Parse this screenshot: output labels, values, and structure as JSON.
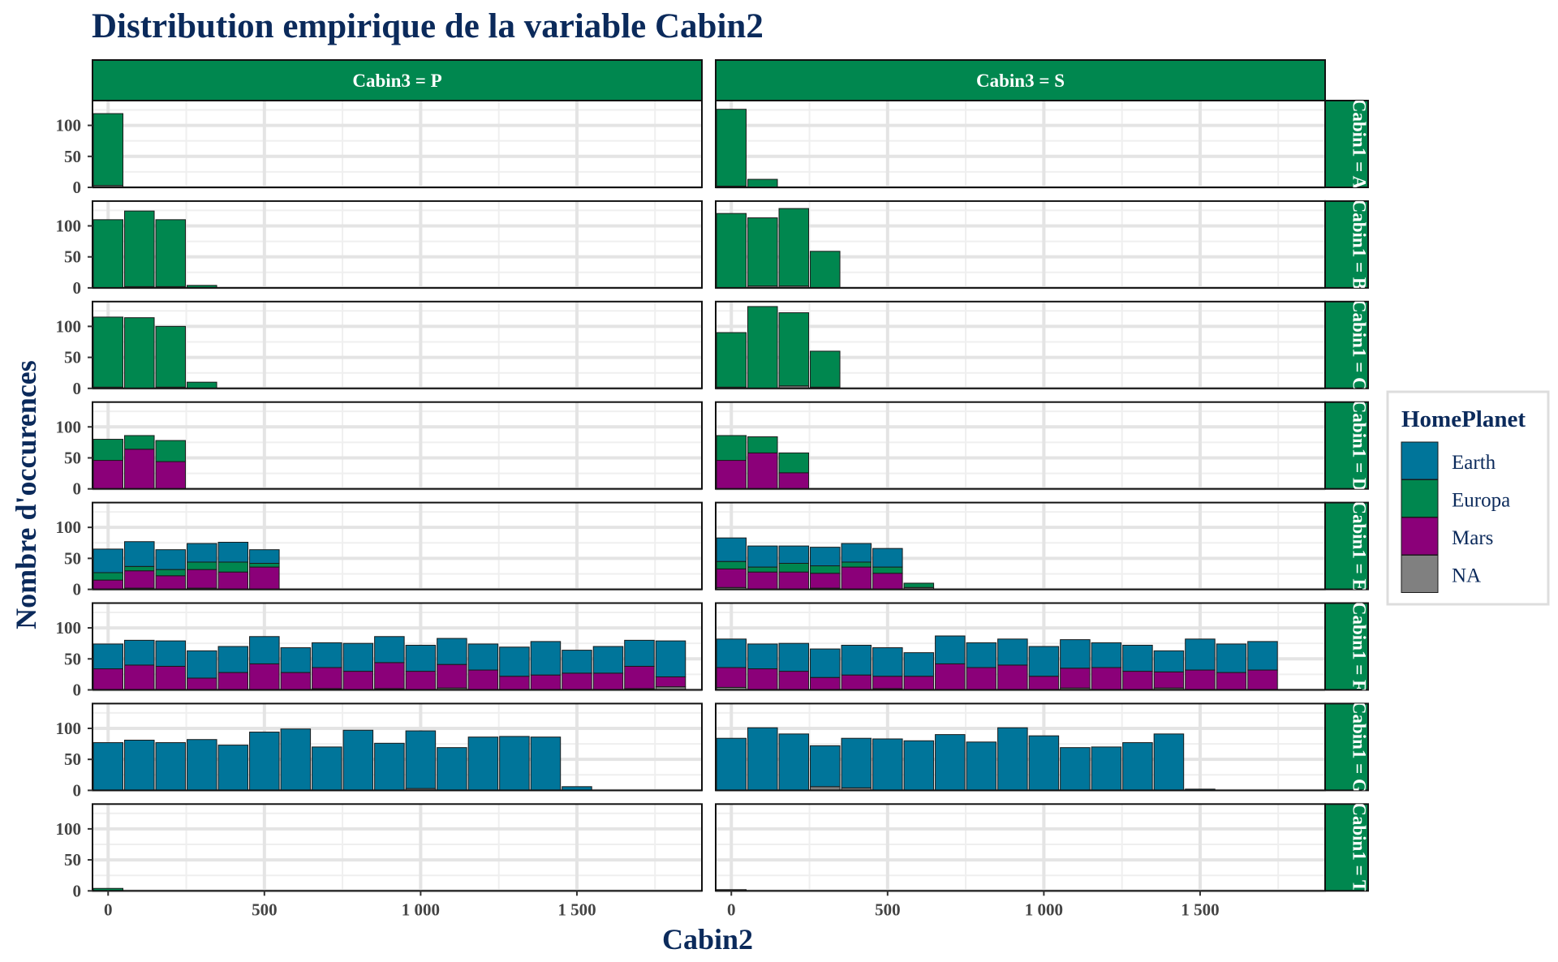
{
  "chart_data": {
    "type": "bar",
    "title": "Distribution empirique de la variable Cabin2",
    "xlabel": "Cabin2",
    "ylabel": "Nombre d'occurences",
    "xlim": [
      -50,
      1900
    ],
    "ylim": [
      0,
      140
    ],
    "x_ticks": [
      0,
      500,
      1000,
      1500
    ],
    "x_tick_labels": [
      "0",
      "500",
      "1 000",
      "1 500"
    ],
    "y_ticks": [
      0,
      50,
      100
    ],
    "y_tick_labels": [
      "0",
      "50",
      "100"
    ],
    "bin_width": 100,
    "grid": true,
    "legend_position": "right",
    "legend_title": "HomePlanet",
    "stack_order": [
      "NA",
      "Mars",
      "Europa",
      "Earth"
    ],
    "series": [
      {
        "name": "Earth",
        "color": "#00759a"
      },
      {
        "name": "Europa",
        "color": "#00874f"
      },
      {
        "name": "Mars",
        "color": "#8b0079"
      },
      {
        "name": "NA",
        "color": "#808080"
      }
    ],
    "strip_color": "#00874f",
    "columns": [
      {
        "label": "Cabin3 = P"
      },
      {
        "label": "Cabin3 = S"
      }
    ],
    "rows": [
      {
        "label": "Cabin1 = A"
      },
      {
        "label": "Cabin1 = B"
      },
      {
        "label": "Cabin1 = C"
      },
      {
        "label": "Cabin1 = D"
      },
      {
        "label": "Cabin1 = E"
      },
      {
        "label": "Cabin1 = F"
      },
      {
        "label": "Cabin1 = G"
      },
      {
        "label": "Cabin1 = T"
      }
    ],
    "panels": [
      {
        "row": 0,
        "col": 0,
        "bins": [
          {
            "x": 0,
            "Europa": 116,
            "NA": 3
          }
        ]
      },
      {
        "row": 0,
        "col": 1,
        "bins": [
          {
            "x": 0,
            "Europa": 124,
            "NA": 2
          },
          {
            "x": 100,
            "Europa": 13
          }
        ]
      },
      {
        "row": 1,
        "col": 0,
        "bins": [
          {
            "x": 0,
            "Europa": 110
          },
          {
            "x": 100,
            "Europa": 122,
            "NA": 2
          },
          {
            "x": 200,
            "Europa": 108,
            "NA": 2
          },
          {
            "x": 300,
            "Europa": 4
          }
        ]
      },
      {
        "row": 1,
        "col": 1,
        "bins": [
          {
            "x": 0,
            "Europa": 120
          },
          {
            "x": 100,
            "Europa": 110,
            "NA": 3
          },
          {
            "x": 200,
            "Europa": 125,
            "NA": 3
          },
          {
            "x": 300,
            "Europa": 59
          }
        ]
      },
      {
        "row": 2,
        "col": 0,
        "bins": [
          {
            "x": 0,
            "Europa": 113,
            "NA": 2
          },
          {
            "x": 100,
            "Europa": 114
          },
          {
            "x": 200,
            "Europa": 98,
            "NA": 2
          },
          {
            "x": 300,
            "Europa": 10
          }
        ]
      },
      {
        "row": 2,
        "col": 1,
        "bins": [
          {
            "x": 0,
            "Europa": 88,
            "NA": 2
          },
          {
            "x": 100,
            "Europa": 132
          },
          {
            "x": 200,
            "Europa": 118,
            "NA": 4
          },
          {
            "x": 300,
            "Europa": 58,
            "NA": 2
          }
        ]
      },
      {
        "row": 3,
        "col": 0,
        "bins": [
          {
            "x": 0,
            "Mars": 46,
            "Europa": 34
          },
          {
            "x": 100,
            "Mars": 64,
            "Europa": 22
          },
          {
            "x": 200,
            "Mars": 44,
            "Europa": 34
          }
        ]
      },
      {
        "row": 3,
        "col": 1,
        "bins": [
          {
            "x": 0,
            "Mars": 46,
            "Europa": 40
          },
          {
            "x": 100,
            "Mars": 58,
            "Europa": 26
          },
          {
            "x": 200,
            "Mars": 26,
            "Europa": 32
          }
        ]
      },
      {
        "row": 4,
        "col": 0,
        "bins": [
          {
            "x": 0,
            "Mars": 15,
            "Europa": 12,
            "Earth": 38
          },
          {
            "x": 100,
            "Mars": 28,
            "Europa": 7,
            "Earth": 40,
            "NA": 2
          },
          {
            "x": 200,
            "Mars": 22,
            "Europa": 10,
            "Earth": 32
          },
          {
            "x": 300,
            "Mars": 30,
            "Europa": 12,
            "Earth": 30,
            "NA": 2
          },
          {
            "x": 400,
            "Mars": 28,
            "Europa": 16,
            "Earth": 32
          },
          {
            "x": 500,
            "Mars": 36,
            "Europa": 6,
            "Earth": 22
          }
        ]
      },
      {
        "row": 4,
        "col": 1,
        "bins": [
          {
            "x": 0,
            "Mars": 30,
            "Europa": 12,
            "Earth": 38,
            "NA": 3
          },
          {
            "x": 100,
            "Mars": 28,
            "Europa": 8,
            "Earth": 34
          },
          {
            "x": 200,
            "Mars": 28,
            "Europa": 14,
            "Earth": 28
          },
          {
            "x": 300,
            "Mars": 24,
            "Europa": 12,
            "Earth": 30,
            "NA": 2
          },
          {
            "x": 400,
            "Mars": 36,
            "Europa": 8,
            "Earth": 30
          },
          {
            "x": 500,
            "Mars": 26,
            "Europa": 10,
            "Earth": 30
          },
          {
            "x": 600,
            "Europa": 7,
            "NA": 3
          }
        ]
      },
      {
        "row": 5,
        "col": 0,
        "bins": [
          {
            "x": 0,
            "Mars": 34,
            "Earth": 40
          },
          {
            "x": 100,
            "Mars": 40,
            "Earth": 40
          },
          {
            "x": 200,
            "Mars": 38,
            "Earth": 41
          },
          {
            "x": 300,
            "Mars": 19,
            "Earth": 44
          },
          {
            "x": 400,
            "Mars": 28,
            "Earth": 42
          },
          {
            "x": 500,
            "Mars": 42,
            "Earth": 44
          },
          {
            "x": 600,
            "Mars": 28,
            "Earth": 40
          },
          {
            "x": 700,
            "Mars": 34,
            "Earth": 40,
            "NA": 2
          },
          {
            "x": 800,
            "Mars": 30,
            "Earth": 45
          },
          {
            "x": 900,
            "Mars": 42,
            "Earth": 42,
            "NA": 2
          },
          {
            "x": 1000,
            "Mars": 30,
            "Earth": 42
          },
          {
            "x": 1100,
            "Mars": 38,
            "Earth": 42,
            "NA": 3
          },
          {
            "x": 1200,
            "Mars": 32,
            "Earth": 42
          },
          {
            "x": 1300,
            "Mars": 22,
            "Earth": 47
          },
          {
            "x": 1400,
            "Mars": 24,
            "Earth": 54
          },
          {
            "x": 1500,
            "Mars": 27,
            "Earth": 37
          },
          {
            "x": 1600,
            "Mars": 27,
            "Earth": 43
          },
          {
            "x": 1700,
            "Mars": 36,
            "Earth": 42,
            "NA": 2
          },
          {
            "x": 1800,
            "Mars": 16,
            "Earth": 58,
            "NA": 5
          }
        ]
      },
      {
        "row": 5,
        "col": 1,
        "bins": [
          {
            "x": 0,
            "Mars": 32,
            "Earth": 46,
            "NA": 4
          },
          {
            "x": 100,
            "Mars": 34,
            "Earth": 40
          },
          {
            "x": 200,
            "Mars": 30,
            "Earth": 45
          },
          {
            "x": 300,
            "Mars": 20,
            "Earth": 46
          },
          {
            "x": 400,
            "Mars": 24,
            "Earth": 48
          },
          {
            "x": 500,
            "Mars": 20,
            "Earth": 46,
            "NA": 2
          },
          {
            "x": 600,
            "Mars": 22,
            "Earth": 38
          },
          {
            "x": 700,
            "Mars": 42,
            "Earth": 45
          },
          {
            "x": 800,
            "Mars": 36,
            "Earth": 40
          },
          {
            "x": 900,
            "Mars": 40,
            "Earth": 42
          },
          {
            "x": 1000,
            "Mars": 22,
            "Earth": 48
          },
          {
            "x": 1100,
            "Mars": 32,
            "Earth": 46,
            "NA": 3
          },
          {
            "x": 1200,
            "Mars": 36,
            "Earth": 40
          },
          {
            "x": 1300,
            "Mars": 30,
            "Earth": 42
          },
          {
            "x": 1400,
            "Mars": 26,
            "Earth": 34,
            "NA": 3
          },
          {
            "x": 1500,
            "Mars": 32,
            "Earth": 50
          },
          {
            "x": 1600,
            "Mars": 28,
            "Earth": 46
          },
          {
            "x": 1700,
            "Mars": 32,
            "Earth": 46
          }
        ]
      },
      {
        "row": 6,
        "col": 0,
        "bins": [
          {
            "x": 0,
            "Earth": 77
          },
          {
            "x": 100,
            "Earth": 81
          },
          {
            "x": 200,
            "Earth": 77
          },
          {
            "x": 300,
            "Earth": 82
          },
          {
            "x": 400,
            "Earth": 73
          },
          {
            "x": 500,
            "Earth": 94
          },
          {
            "x": 600,
            "Earth": 99
          },
          {
            "x": 700,
            "Earth": 70
          },
          {
            "x": 800,
            "Earth": 97
          },
          {
            "x": 900,
            "Earth": 76
          },
          {
            "x": 1000,
            "Earth": 93,
            "NA": 3
          },
          {
            "x": 1100,
            "Earth": 69
          },
          {
            "x": 1200,
            "Earth": 86
          },
          {
            "x": 1300,
            "Earth": 87
          },
          {
            "x": 1400,
            "Earth": 86
          },
          {
            "x": 1500,
            "Earth": 6
          }
        ]
      },
      {
        "row": 6,
        "col": 1,
        "bins": [
          {
            "x": 0,
            "Earth": 84
          },
          {
            "x": 100,
            "Earth": 101
          },
          {
            "x": 200,
            "Earth": 91
          },
          {
            "x": 300,
            "Earth": 66,
            "NA": 6
          },
          {
            "x": 400,
            "Earth": 80,
            "NA": 4
          },
          {
            "x": 500,
            "Earth": 83
          },
          {
            "x": 600,
            "Earth": 80
          },
          {
            "x": 700,
            "Earth": 90
          },
          {
            "x": 800,
            "Earth": 78
          },
          {
            "x": 900,
            "Earth": 101
          },
          {
            "x": 1000,
            "Earth": 88
          },
          {
            "x": 1100,
            "Earth": 69
          },
          {
            "x": 1200,
            "Earth": 70
          },
          {
            "x": 1300,
            "Earth": 77
          },
          {
            "x": 1400,
            "Earth": 91
          },
          {
            "x": 1500,
            "Earth": 2
          }
        ]
      },
      {
        "row": 7,
        "col": 0,
        "bins": [
          {
            "x": 0,
            "Europa": 4
          }
        ]
      },
      {
        "row": 7,
        "col": 1,
        "bins": [
          {
            "x": 0,
            "NA": 2
          }
        ]
      }
    ]
  }
}
